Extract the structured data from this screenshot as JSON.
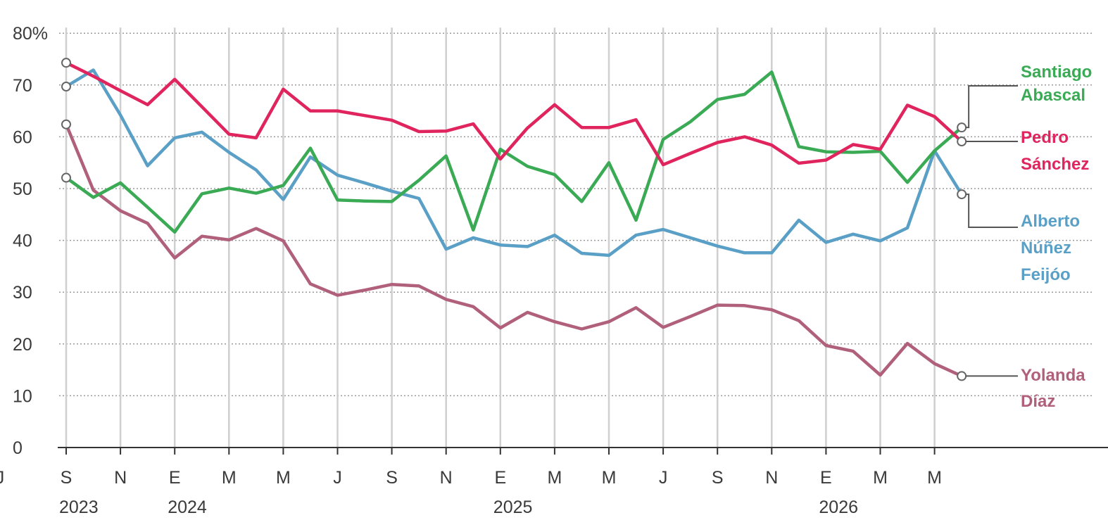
{
  "chart_data": {
    "type": "line",
    "title": "",
    "xlabel": "",
    "ylabel": "",
    "ylim": [
      0,
      80
    ],
    "y_ticks": [
      "80%",
      "70",
      "60",
      "50",
      "40",
      "30",
      "20",
      "10",
      "0"
    ],
    "grid": true,
    "x_tick_labels": [
      "S",
      "N",
      "E",
      "M",
      "M",
      "J",
      "S",
      "N",
      "E",
      "M",
      "M",
      "J",
      "S",
      "N",
      "E",
      "M",
      "M",
      "J"
    ],
    "year_labels": [
      "2023",
      "2024",
      "2025",
      "2026"
    ],
    "x": [
      "2023-09-01",
      "2023-10-01",
      "2023-11-01",
      "2023-12-01",
      "2024-01-01",
      "2024-02-01",
      "2024-03-01",
      "2024-04-01",
      "2024-05-01",
      "2024-06-01",
      "2024-07-01",
      "2024-08-01",
      "2024-09-01",
      "2024-10-01",
      "2024-11-01",
      "2024-12-01",
      "2025-01-01",
      "2025-02-01",
      "2025-03-01",
      "2025-04-01",
      "2025-05-01",
      "2025-06-01",
      "2025-07-01",
      "2025-08-01",
      "2025-09-01",
      "2025-10-01",
      "2025-11-01",
      "2025-12-01",
      "2026-01-01",
      "2026-02-01",
      "2026-03-01",
      "2026-04-01",
      "2026-05-01",
      "2026-06-01"
    ],
    "legend_position": "right",
    "series": [
      {
        "name": "Pedro Sánchez",
        "label_lines": [
          "Pedro",
          "Sánchez"
        ],
        "color": "#e0245e",
        "values": [
          74.3,
          71.7,
          68.9,
          66.2,
          71.1,
          65.8,
          60.5,
          59.8,
          69.2,
          65.0,
          65.0,
          64.1,
          63.2,
          61.0,
          61.1,
          62.5,
          55.7,
          61.7,
          66.2,
          61.8,
          61.8,
          63.3,
          54.6,
          56.8,
          58.9,
          60.0,
          58.4,
          54.9,
          55.5,
          58.5,
          57.6,
          66.1,
          63.9,
          59.1
        ]
      },
      {
        "name": "Santiago Abascal",
        "label_lines": [
          "Santiago",
          "Abascal"
        ],
        "color": "#3aaa55",
        "values": [
          52.1,
          48.3,
          51.1,
          46.4,
          41.6,
          49.0,
          50.1,
          49.1,
          50.6,
          57.8,
          47.8,
          47.6,
          47.5,
          51.6,
          56.3,
          42.0,
          57.6,
          54.3,
          52.7,
          47.5,
          55.0,
          43.9,
          59.5,
          62.9,
          67.2,
          68.2,
          72.5,
          58.1,
          57.1,
          57.0,
          57.2,
          51.2,
          57.3,
          61.8
        ]
      },
      {
        "name": "Alberto Núñez Feijóo",
        "label_lines": [
          "Alberto",
          "Núñez",
          "Feijóo"
        ],
        "color": "#5a9fc6",
        "values": [
          69.7,
          72.9,
          64.2,
          54.4,
          59.8,
          60.9,
          57.0,
          53.6,
          47.9,
          56.1,
          52.6,
          51.1,
          49.5,
          48.1,
          38.3,
          40.5,
          39.1,
          38.8,
          41.0,
          37.5,
          37.1,
          41.0,
          42.1,
          40.5,
          38.9,
          37.6,
          37.6,
          43.9,
          39.6,
          41.2,
          39.9,
          42.4,
          57.3,
          48.9
        ]
      },
      {
        "name": "Yolanda Díaz",
        "label_lines": [
          "Yolanda",
          "Díaz"
        ],
        "color": "#b0607a",
        "values": [
          62.4,
          49.7,
          45.7,
          43.3,
          36.6,
          40.8,
          40.1,
          42.3,
          39.9,
          31.6,
          29.4,
          30.4,
          31.5,
          31.2,
          28.6,
          27.2,
          23.1,
          26.1,
          24.3,
          22.9,
          24.3,
          27.0,
          23.2,
          25.3,
          27.5,
          27.4,
          26.6,
          24.5,
          19.7,
          18.6,
          14.0,
          20.1,
          16.2,
          13.8
        ]
      }
    ]
  }
}
